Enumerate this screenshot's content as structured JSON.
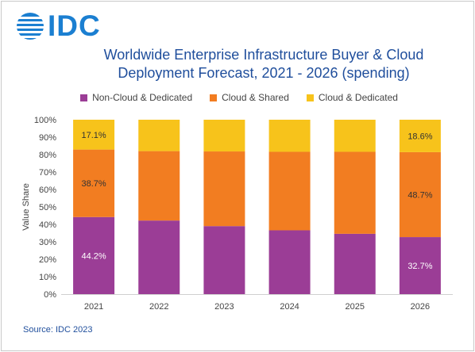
{
  "logo": {
    "text": "IDC",
    "icon": "idc-globe-icon"
  },
  "colors": {
    "non_cloud": "#9b3d96",
    "cloud_shared": "#f27d21",
    "cloud_dedicated": "#f7c31b",
    "brand": "#1b7fd1",
    "title": "#1f4e9c"
  },
  "chart_data": {
    "type": "bar",
    "stacked": true,
    "percent_stacked": true,
    "title_lines": [
      "Worldwide Enterprise Infrastructure Buyer & Cloud",
      "Deployment Forecast, 2021 - 2026 (spending)"
    ],
    "xlabel": "",
    "ylabel": "Value  Share",
    "ylim": [
      0,
      100
    ],
    "yticks": [
      "0%",
      "10%",
      "20%",
      "30%",
      "40%",
      "50%",
      "60%",
      "70%",
      "80%",
      "90%",
      "100%"
    ],
    "categories": [
      "2021",
      "2022",
      "2023",
      "2024",
      "2025",
      "2026"
    ],
    "series": [
      {
        "name": "Non-Cloud & Dedicated",
        "values": [
          44.2,
          42.2,
          39.0,
          36.6,
          34.6,
          32.7
        ],
        "labels": [
          "44.2%",
          "",
          "",
          "",
          "",
          "32.7%"
        ]
      },
      {
        "name": "Cloud & Shared",
        "values": [
          38.7,
          39.8,
          42.8,
          45.0,
          47.0,
          48.7
        ],
        "labels": [
          "38.7%",
          "",
          "",
          "",
          "",
          "48.7%"
        ]
      },
      {
        "name": "Cloud & Dedicated",
        "values": [
          17.1,
          18.0,
          18.2,
          18.4,
          18.4,
          18.6
        ],
        "labels": [
          "17.1%",
          "",
          "",
          "",
          "",
          "18.6%"
        ]
      }
    ],
    "legend": "top",
    "grid": false
  },
  "source": "Source: IDC 2023"
}
